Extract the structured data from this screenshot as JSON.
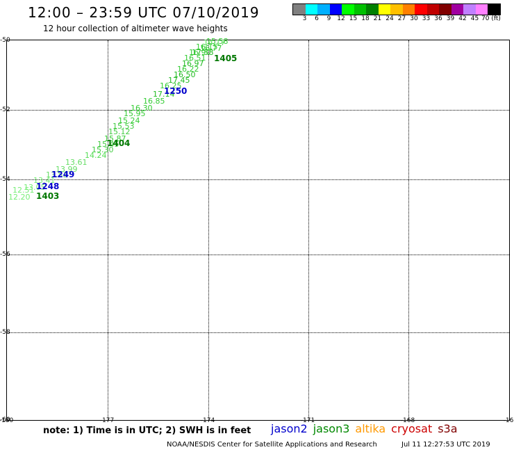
{
  "header": {
    "title": "12:00 – 23:59 UTC 07/10/2019",
    "subtitle": "12 hour collection of altimeter wave heights"
  },
  "legend": {
    "colors": [
      "#808080",
      "#00ffff",
      "#00b0ff",
      "#0000ff",
      "#00ff00",
      "#00c000",
      "#008000",
      "#ffff00",
      "#ffc000",
      "#ff8000",
      "#ff0000",
      "#c00000",
      "#800000",
      "#a000a0",
      "#c080ff",
      "#ff80ff",
      "#000000"
    ],
    "labels": [
      "3",
      "6",
      "9",
      "12",
      "15",
      "18",
      "21",
      "24",
      "27",
      "30",
      "33",
      "36",
      "39",
      "42",
      "45",
      "70 (ft)"
    ]
  },
  "map": {
    "lat_labels": [
      "-50",
      "-52",
      "-54",
      "-56",
      "-58",
      "-60"
    ],
    "lon_labels": [
      "-180",
      "-177",
      "-174",
      "-171",
      "-168",
      "-16"
    ],
    "observations": [
      {
        "t": "15.58",
        "c": "#33cc33"
      },
      {
        "t": "14.17",
        "c": "#55dd55"
      },
      {
        "t": "16.77",
        "c": "#33cc33"
      },
      {
        "t": "16.15",
        "c": "#33cc33"
      },
      {
        "t": "17.58",
        "c": "#22bb22"
      },
      {
        "t": "16.90",
        "c": "#33cc33"
      },
      {
        "t": "16.51",
        "c": "#33cc33"
      },
      {
        "t": "16.97",
        "c": "#22bb22"
      },
      {
        "t": "16.22",
        "c": "#33cc33"
      },
      {
        "t": "16.50",
        "c": "#22bb22"
      },
      {
        "t": "17.45",
        "c": "#22bb22"
      },
      {
        "t": "16.25",
        "c": "#33cc33"
      },
      {
        "t": "17.14",
        "c": "#22bb22"
      },
      {
        "t": "16.85",
        "c": "#33cc33"
      },
      {
        "t": "16.30",
        "c": "#33cc33"
      },
      {
        "t": "15.95",
        "c": "#33cc33"
      },
      {
        "t": "15.24",
        "c": "#33cc33"
      },
      {
        "t": "15.53",
        "c": "#44cc44"
      },
      {
        "t": "15.12",
        "c": "#44cc44"
      },
      {
        "t": "15.87",
        "c": "#33cc33"
      },
      {
        "t": "15.45",
        "c": "#44cc44"
      },
      {
        "t": "15.30",
        "c": "#44cc44"
      },
      {
        "t": "14.24",
        "c": "#55dd55"
      },
      {
        "t": "13.61",
        "c": "#66dd66"
      },
      {
        "t": "13.99",
        "c": "#66dd66"
      },
      {
        "t": "13.53",
        "c": "#66dd66"
      },
      {
        "t": "13.41",
        "c": "#77ee77"
      },
      {
        "t": "13.05",
        "c": "#77ee77"
      },
      {
        "t": "12.51",
        "c": "#77ee77"
      },
      {
        "t": "12.20",
        "c": "#77ee77"
      }
    ],
    "pass_labels": [
      {
        "t": "1405",
        "c": "#007700"
      },
      {
        "t": "1250",
        "c": "#0000cc"
      },
      {
        "t": "1404",
        "c": "#007700"
      },
      {
        "t": "1249",
        "c": "#0000cc"
      },
      {
        "t": "1248",
        "c": "#0000cc"
      },
      {
        "t": "1403",
        "c": "#007700"
      }
    ]
  },
  "footer": {
    "note": "note: 1) Time is in UTC; 2) SWH is in feet",
    "satellites": [
      {
        "name": "jason2",
        "color": "#0000cc"
      },
      {
        "name": "jason3",
        "color": "#008800"
      },
      {
        "name": "altika",
        "color": "#ff9900"
      },
      {
        "name": "cryosat",
        "color": "#cc0000"
      },
      {
        "name": "s3a",
        "color": "#800000"
      }
    ],
    "credit": "NOAA/NESDIS Center for Satellite Applications and Research",
    "timestamp": "Jul 11 12:27:53 UTC 2019"
  }
}
